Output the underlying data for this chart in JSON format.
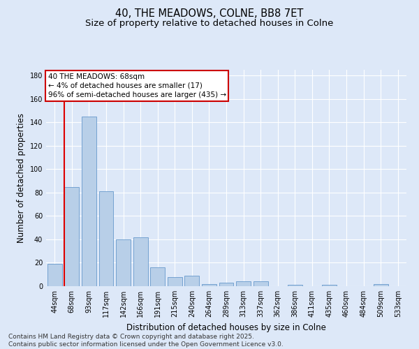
{
  "title_line1": "40, THE MEADOWS, COLNE, BB8 7ET",
  "title_line2": "Size of property relative to detached houses in Colne",
  "xlabel": "Distribution of detached houses by size in Colne",
  "ylabel": "Number of detached properties",
  "categories": [
    "44sqm",
    "68sqm",
    "93sqm",
    "117sqm",
    "142sqm",
    "166sqm",
    "191sqm",
    "215sqm",
    "240sqm",
    "264sqm",
    "289sqm",
    "313sqm",
    "337sqm",
    "362sqm",
    "386sqm",
    "411sqm",
    "435sqm",
    "460sqm",
    "484sqm",
    "509sqm",
    "533sqm"
  ],
  "values": [
    19,
    85,
    145,
    81,
    40,
    42,
    16,
    8,
    9,
    2,
    3,
    4,
    4,
    0,
    1,
    0,
    1,
    0,
    0,
    2,
    0
  ],
  "bar_color": "#b8cfe8",
  "bar_edge_color": "#6699cc",
  "highlight_bar_index": 1,
  "vline_color": "#dd0000",
  "annotation_text": "40 THE MEADOWS: 68sqm\n← 4% of detached houses are smaller (17)\n96% of semi-detached houses are larger (435) →",
  "annotation_box_edge_color": "#cc0000",
  "annotation_box_face_color": "#ffffff",
  "ylim": [
    0,
    185
  ],
  "yticks": [
    0,
    20,
    40,
    60,
    80,
    100,
    120,
    140,
    160,
    180
  ],
  "background_color": "#dde8f8",
  "plot_bg_color": "#dde8f8",
  "grid_color": "#ffffff",
  "footer_line1": "Contains HM Land Registry data © Crown copyright and database right 2025.",
  "footer_line2": "Contains public sector information licensed under the Open Government Licence v3.0.",
  "title_fontsize": 10.5,
  "subtitle_fontsize": 9.5,
  "axis_label_fontsize": 8.5,
  "tick_fontsize": 7,
  "annotation_fontsize": 7.5,
  "footer_fontsize": 6.5
}
